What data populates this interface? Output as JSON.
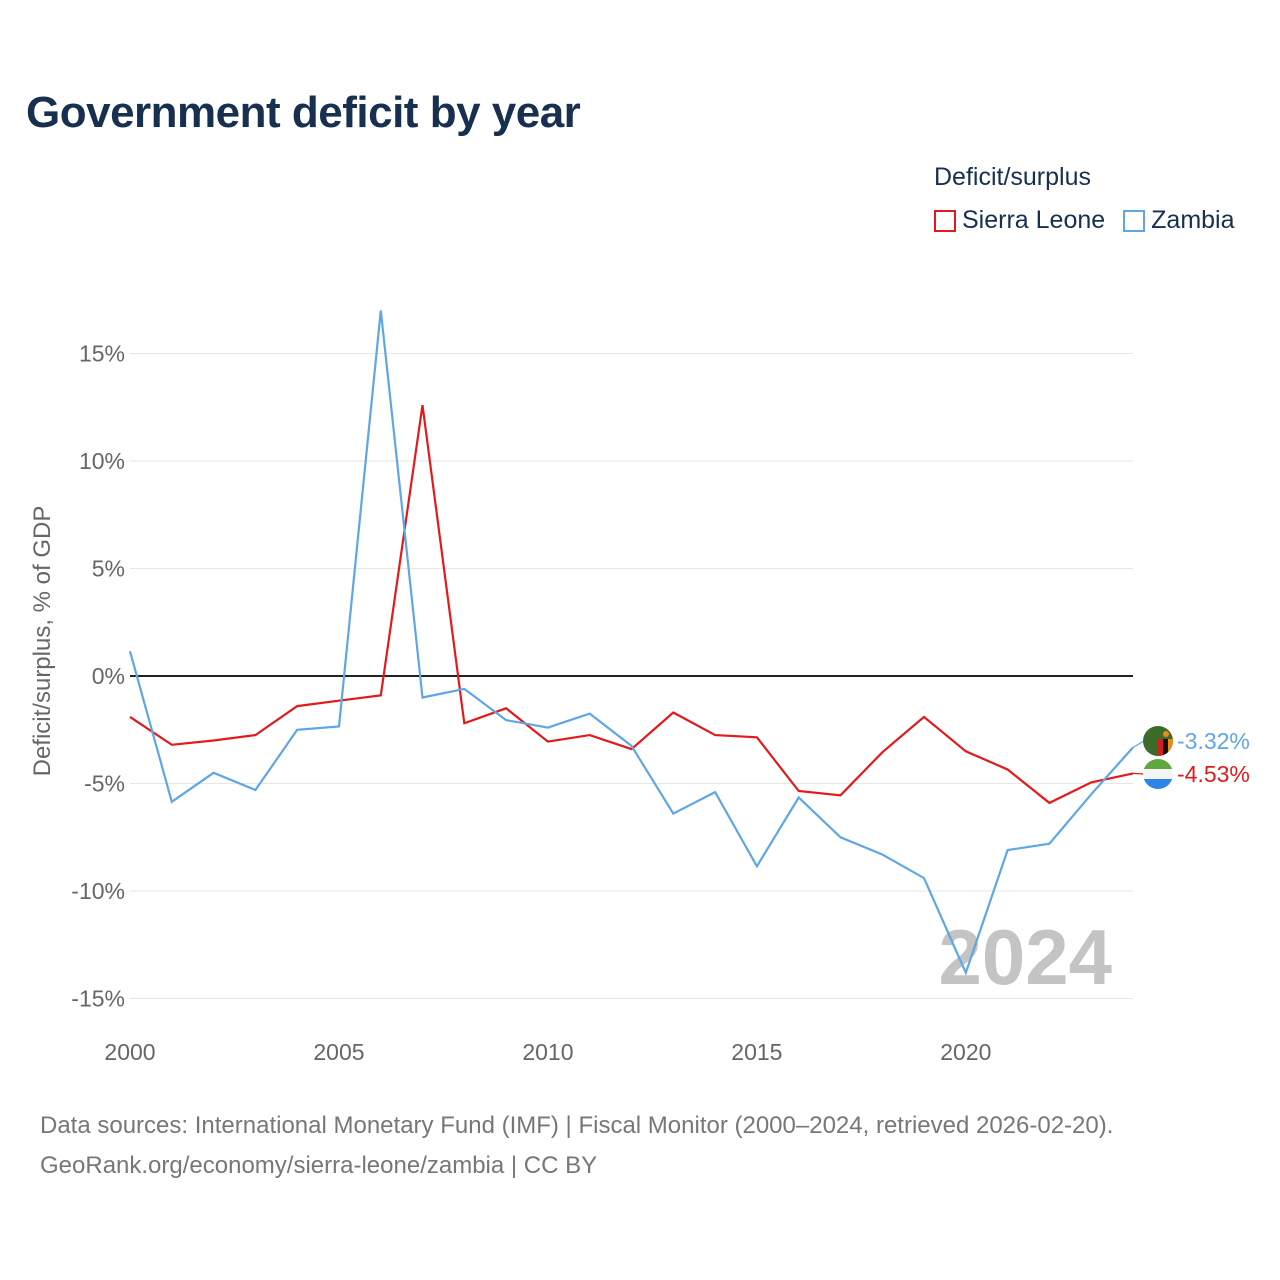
{
  "chart_data": {
    "type": "line",
    "title": "Government deficit by year",
    "ylabel": "Deficit/surplus, % of GDP",
    "xlabel": "",
    "x": [
      2000,
      2001,
      2002,
      2003,
      2004,
      2005,
      2006,
      2007,
      2008,
      2009,
      2010,
      2011,
      2012,
      2013,
      2014,
      2015,
      2016,
      2017,
      2018,
      2019,
      2020,
      2021,
      2022,
      2023,
      2024
    ],
    "xlim": [
      2000,
      2024
    ],
    "ylim": [
      -15,
      17
    ],
    "x_ticks": [
      2000,
      2005,
      2010,
      2015,
      2020
    ],
    "x_tick_labels": [
      "2000",
      "2005",
      "2010",
      "2015",
      "2020"
    ],
    "y_ticks": [
      15,
      10,
      5,
      0,
      -5,
      -10,
      -15
    ],
    "y_tick_labels": [
      "15%",
      "10%",
      "5%",
      "0%",
      "-5%",
      "-10%",
      "-15%"
    ],
    "legend_title": "Deficit/surplus",
    "legend_position": "top-right",
    "watermark_year": "2024",
    "grid": true,
    "series": [
      {
        "name": "Sierra Leone",
        "color": "#e31a1c",
        "values": [
          -1.9,
          -3.2,
          -3.0,
          -2.75,
          -1.4,
          -1.15,
          -0.9,
          12.6,
          -2.2,
          -1.5,
          -3.05,
          -2.75,
          -3.4,
          -1.7,
          -2.75,
          -2.85,
          -5.35,
          -5.55,
          -3.55,
          -1.9,
          -3.5,
          -4.35,
          -5.9,
          -4.95,
          -4.53
        ],
        "end_label": "-4.53%",
        "flag_icon": "sierra-leone-flag-icon"
      },
      {
        "name": "Zambia",
        "color": "#5fa6e6",
        "values": [
          1.15,
          -5.85,
          -4.5,
          -5.3,
          -2.5,
          -2.35,
          17.0,
          -1.0,
          -0.6,
          -2.05,
          -2.4,
          -1.75,
          -3.25,
          -6.4,
          -5.4,
          -8.85,
          -5.65,
          -7.5,
          -8.3,
          -9.4,
          -13.8,
          -8.1,
          -7.8,
          -5.5,
          -3.32
        ],
        "end_label": "-3.32%",
        "flag_icon": "zambia-flag-icon"
      }
    ]
  },
  "sources": {
    "line1": "Data sources: International Monetary Fund (IMF) | Fiscal Monitor (2000–2024, retrieved 2026-02-20).",
    "line2": "GeoRank.org/economy/sierra-leone/zambia | CC BY"
  }
}
